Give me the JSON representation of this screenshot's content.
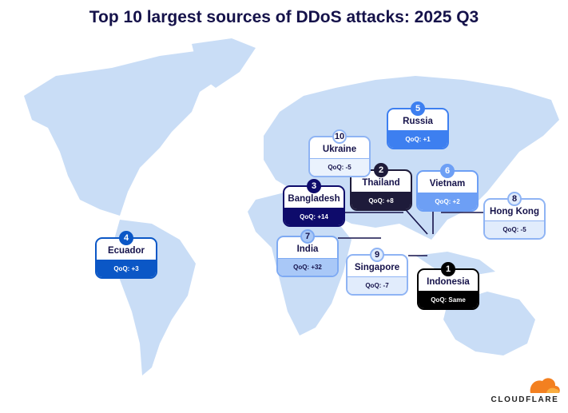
{
  "title": "Top 10 largest sources of DDoS attacks: 2025 Q3",
  "entries": [
    {
      "rank": "1",
      "country": "Indonesia",
      "qoq": "QoQ: Same",
      "style": {
        "border": "#000000",
        "footer": "#000000",
        "footer_text": "#ffffff",
        "badge_bg": "#000000",
        "badge_text": "#ffffff"
      }
    },
    {
      "rank": "2",
      "country": "Thailand",
      "qoq": "QoQ: +8",
      "style": {
        "border": "#1e1b3a",
        "footer": "#1e1b3a",
        "footer_text": "#ffffff",
        "badge_bg": "#1e1b3a",
        "badge_text": "#ffffff"
      }
    },
    {
      "rank": "3",
      "country": "Bangladesh",
      "qoq": "QoQ: +14",
      "style": {
        "border": "#0e0b6b",
        "footer": "#0e0b6b",
        "footer_text": "#ffffff",
        "badge_bg": "#0e0b6b",
        "badge_text": "#ffffff"
      }
    },
    {
      "rank": "4",
      "country": "Ecuador",
      "qoq": "QoQ: +3",
      "style": {
        "border": "#0b57c6",
        "footer": "#0b57c6",
        "footer_text": "#ffffff",
        "badge_bg": "#0b57c6",
        "badge_text": "#ffffff"
      }
    },
    {
      "rank": "5",
      "country": "Russia",
      "qoq": "QoQ: +1",
      "style": {
        "border": "#3d7ff0",
        "footer": "#3d7ff0",
        "footer_text": "#ffffff",
        "badge_bg": "#3d7ff0",
        "badge_text": "#ffffff"
      }
    },
    {
      "rank": "6",
      "country": "Vietnam",
      "qoq": "QoQ: +2",
      "style": {
        "border": "#6d9ff5",
        "footer": "#6d9ff5",
        "footer_text": "#ffffff",
        "badge_bg": "#6d9ff5",
        "badge_text": "#ffffff"
      }
    },
    {
      "rank": "7",
      "country": "India",
      "qoq": "QoQ: +32",
      "style": {
        "border": "#7eaaf3",
        "footer": "#a9c8f7",
        "footer_text": "#15124a",
        "badge_bg": "#a9c8f7",
        "badge_text": "#15124a"
      }
    },
    {
      "rank": "8",
      "country": "Hong Kong",
      "qoq": "QoQ: -5",
      "style": {
        "border": "#8fb4f4",
        "footer": "#e1ecfc",
        "footer_text": "#15124a",
        "badge_bg": "#e1ecfc",
        "badge_text": "#15124a"
      }
    },
    {
      "rank": "9",
      "country": "Singapore",
      "qoq": "QoQ: -7",
      "style": {
        "border": "#8fb4f4",
        "footer": "#e1ecfc",
        "footer_text": "#15124a",
        "badge_bg": "#e1ecfc",
        "badge_text": "#15124a"
      }
    },
    {
      "rank": "10",
      "country": "Ukraine",
      "qoq": "QoQ: -5",
      "style": {
        "border": "#8fb4f4",
        "footer": "#eaf2fd",
        "footer_text": "#15124a",
        "badge_bg": "#ffffff",
        "badge_text": "#15124a"
      }
    }
  ],
  "logo": {
    "text": "CLOUDFLARE",
    "color": "#f38020"
  },
  "map_color": "#c9ddf6"
}
